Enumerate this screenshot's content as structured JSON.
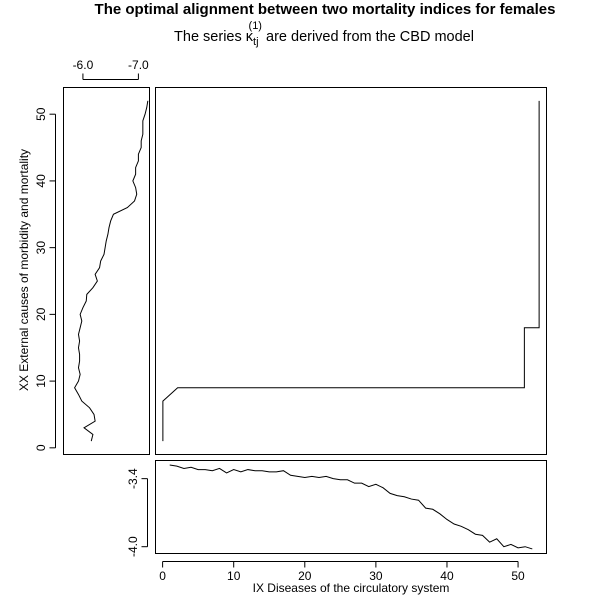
{
  "chart_data": [
    {
      "panel": "alignment",
      "type": "line",
      "title": "The optimal alignment between two mortality indices for females",
      "subtitle_prefix": "The series κ",
      "subtitle_sub": "tj",
      "subtitle_sup": "(1)",
      "subtitle_suffix": " are derived from the CBD model",
      "xlim": [
        0,
        53
      ],
      "ylim": [
        -1,
        54
      ],
      "series": [
        {
          "x": [
            1,
            1,
            3,
            3,
            50,
            50,
            52,
            52
          ],
          "y": [
            1,
            7,
            9,
            9,
            9,
            18,
            18,
            52
          ]
        }
      ]
    },
    {
      "panel": "left",
      "type": "line",
      "ylabel": "XX External causes of morbidity and mortality",
      "xlim": [
        -5.65,
        -7.2
      ],
      "ylim": [
        -1,
        54
      ],
      "xticks": [
        -6.0,
        -7.0
      ],
      "xtick_labels": [
        "-6.0",
        "-7.0"
      ],
      "yticks": [
        0,
        10,
        20,
        30,
        40,
        50
      ],
      "ytick_labels": [
        "0",
        "10",
        "20",
        "30",
        "40",
        "50"
      ],
      "series": [
        {
          "y": [
            1,
            2,
            3,
            4,
            5,
            6,
            7,
            8,
            9,
            10,
            11,
            12,
            13,
            14,
            15,
            16,
            17,
            18,
            19,
            20,
            21,
            22,
            23,
            24,
            25,
            26,
            27,
            28,
            29,
            30,
            31,
            32,
            33,
            34,
            35,
            36,
            37,
            38,
            39,
            40,
            41,
            42,
            43,
            44,
            45,
            46,
            47,
            48,
            49,
            50,
            51,
            52
          ],
          "x": [
            -6.15,
            -6.18,
            -6.02,
            -6.22,
            -6.2,
            -6.12,
            -5.98,
            -5.92,
            -5.85,
            -5.92,
            -5.95,
            -5.92,
            -5.94,
            -5.94,
            -5.92,
            -5.94,
            -5.92,
            -5.95,
            -5.98,
            -5.95,
            -6.0,
            -6.06,
            -6.07,
            -6.18,
            -6.26,
            -6.22,
            -6.3,
            -6.32,
            -6.38,
            -6.4,
            -6.42,
            -6.45,
            -6.47,
            -6.5,
            -6.55,
            -6.8,
            -6.93,
            -6.97,
            -6.95,
            -6.9,
            -6.95,
            -6.95,
            -7.0,
            -7.0,
            -7.05,
            -7.05,
            -7.08,
            -7.08,
            -7.08,
            -7.12,
            -7.15,
            -7.17
          ]
        }
      ]
    },
    {
      "panel": "bottom",
      "type": "line",
      "xlabel": "IX Diseases of the circulatory system",
      "xlim": [
        -1,
        54
      ],
      "ylim": [
        -4.06,
        -3.24
      ],
      "xticks": [
        0,
        10,
        20,
        30,
        40,
        50
      ],
      "xtick_labels": [
        "0",
        "10",
        "20",
        "30",
        "40",
        "50"
      ],
      "yticks": [
        -3.4,
        -4.0
      ],
      "ytick_labels": [
        "-3.4",
        "-4.0"
      ],
      "series": [
        {
          "x": [
            1,
            2,
            3,
            4,
            5,
            6,
            7,
            8,
            9,
            10,
            11,
            12,
            13,
            14,
            15,
            16,
            17,
            18,
            19,
            20,
            21,
            22,
            23,
            24,
            25,
            26,
            27,
            28,
            29,
            30,
            31,
            32,
            33,
            34,
            35,
            36,
            37,
            38,
            39,
            40,
            41,
            42,
            43,
            44,
            45,
            46,
            47,
            48,
            49,
            50,
            51,
            52
          ],
          "y": [
            -3.28,
            -3.29,
            -3.31,
            -3.3,
            -3.32,
            -3.32,
            -3.33,
            -3.31,
            -3.35,
            -3.32,
            -3.34,
            -3.32,
            -3.33,
            -3.33,
            -3.34,
            -3.34,
            -3.33,
            -3.37,
            -3.38,
            -3.39,
            -3.38,
            -3.39,
            -3.38,
            -3.4,
            -3.41,
            -3.41,
            -3.44,
            -3.44,
            -3.47,
            -3.45,
            -3.48,
            -3.53,
            -3.55,
            -3.56,
            -3.58,
            -3.59,
            -3.66,
            -3.67,
            -3.71,
            -3.76,
            -3.8,
            -3.82,
            -3.85,
            -3.89,
            -3.9,
            -3.96,
            -3.93,
            -4.0,
            -3.98,
            -4.01,
            -4.0,
            -4.02
          ]
        }
      ]
    }
  ]
}
